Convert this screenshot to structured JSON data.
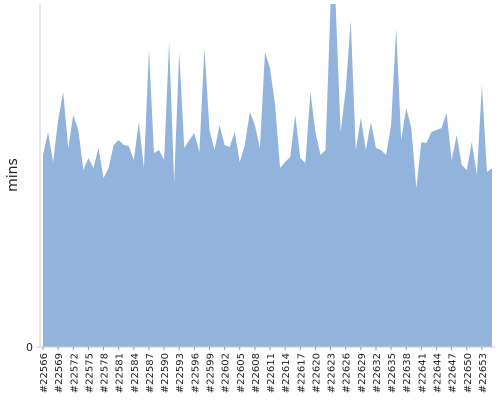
{
  "chart_data": {
    "type": "area",
    "y_label": "mins",
    "color": "#92b4dc",
    "categories": [
      "#22566",
      null,
      null,
      "#22569",
      null,
      null,
      "#22572",
      null,
      null,
      "#22575",
      null,
      null,
      "#22578",
      null,
      null,
      "#22581",
      null,
      null,
      "#22584",
      null,
      null,
      "#22587",
      null,
      null,
      "#22590",
      null,
      null,
      "#22593",
      null,
      null,
      "#22596",
      null,
      null,
      "#22599",
      null,
      null,
      "#22602",
      null,
      null,
      "#22605",
      null,
      null,
      "#22608",
      null,
      null,
      "#22611",
      null,
      null,
      "#22614",
      null,
      null,
      "#22617",
      null,
      null,
      "#22620",
      null,
      null,
      "#22623",
      null,
      null,
      "#22626",
      null,
      null,
      "#22629",
      null,
      null,
      "#22632",
      null,
      null,
      "#22635",
      null,
      null,
      "#22638",
      null,
      null,
      "#22641",
      null,
      null,
      "#22644",
      null,
      null,
      "#22647",
      null,
      null,
      "#22650",
      null,
      null,
      "#22653",
      null,
      null
    ],
    "values": [
      192,
      215,
      185,
      227,
      255,
      199,
      232,
      217,
      177,
      189,
      179,
      199,
      169,
      179,
      202,
      207,
      202,
      201,
      187,
      225,
      179,
      297,
      194,
      197,
      187,
      305,
      165,
      295,
      199,
      207,
      214,
      195,
      299,
      217,
      197,
      222,
      202,
      200,
      215,
      185,
      202,
      235,
      222,
      199,
      295,
      279,
      242,
      179,
      185,
      190,
      232,
      189,
      184,
      255,
      215,
      192,
      197,
      343,
      343,
      215,
      257,
      327,
      197,
      229,
      197,
      225,
      199,
      197,
      192,
      222,
      319,
      207,
      239,
      219,
      159,
      205,
      204,
      215,
      217,
      219,
      234,
      187,
      212,
      182,
      177,
      205,
      172,
      262,
      175,
      179
    ],
    "ylim": [
      0,
      343
    ],
    "yticks": [
      0
    ]
  }
}
